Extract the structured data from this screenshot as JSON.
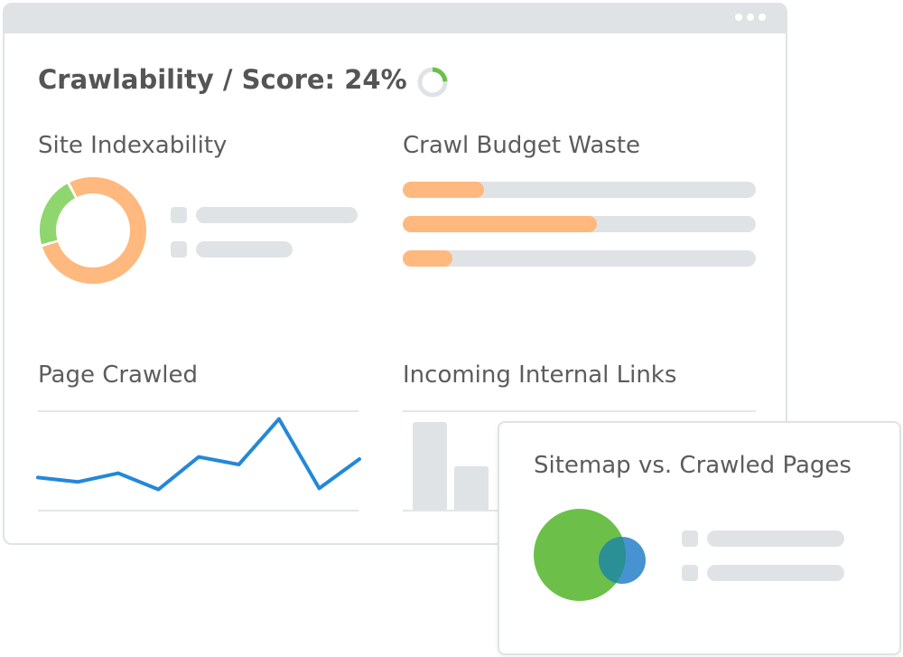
{
  "header": {
    "title": "Crawlability / Score: 24%",
    "score_percent": 24,
    "menu_icon": "more-dots-icon"
  },
  "site_indexability": {
    "title": "Site Indexability",
    "donut": {
      "green_fraction": 0.22,
      "orange_fraction": 0.78
    },
    "legend_placeholder_count": 2
  },
  "crawl_budget_waste": {
    "title": "Crawl Budget Waste",
    "bar_fill_fractions": [
      0.23,
      0.55,
      0.14
    ]
  },
  "page_crawled": {
    "title": "Page Crawled",
    "points": [
      28,
      24,
      32,
      17,
      47,
      40,
      82,
      18,
      45
    ]
  },
  "incoming_internal_links": {
    "title": "Incoming Internal Links",
    "bar_levels": [
      0.88,
      0.44
    ]
  },
  "sitemap_popup": {
    "title": "Sitemap vs. Crawled Pages",
    "sitemap_circle": "large-green",
    "crawled_circle": "small-blue",
    "legend_placeholder_count": 2
  },
  "colors": {
    "green": "#6cc04a",
    "orange": "#ffb87d",
    "blue": "#2388d8",
    "venn_blue": "#4793d1",
    "venn_overlap": "#2b8f96",
    "placeholder": "#dfe3e5",
    "text": "#555555"
  }
}
